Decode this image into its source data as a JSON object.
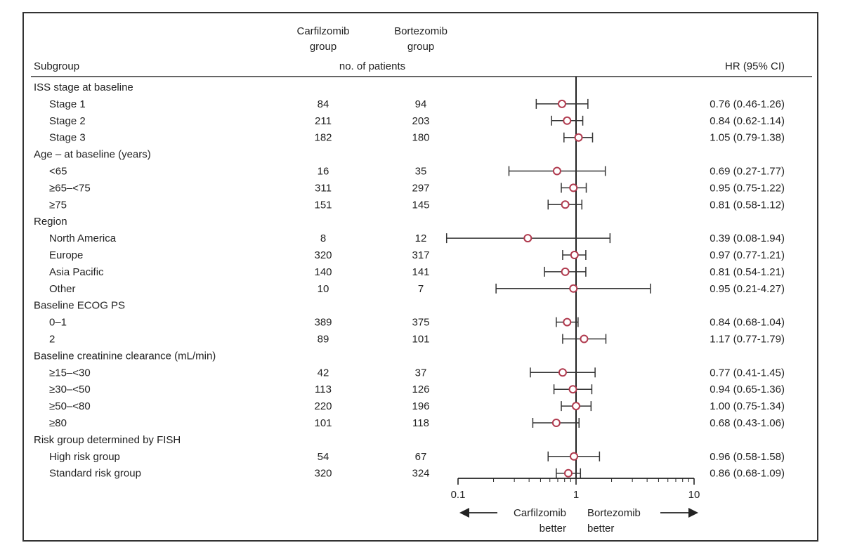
{
  "chart_data": {
    "type": "forest",
    "headers": {
      "subgroup": "Subgroup",
      "group1": [
        "Carfilzomib",
        "group"
      ],
      "group2": [
        "Bortezomib",
        "group"
      ],
      "patients": "no. of patients",
      "hr": "HR (95% CI)"
    },
    "x_scale": "log",
    "xlim": [
      0.1,
      10
    ],
    "reference_line": 1,
    "x_ticks": [
      "0.1",
      "1",
      "10"
    ],
    "direction_labels": {
      "left": [
        "Carfilzomib",
        "better"
      ],
      "right": [
        "Bortezomib",
        "better"
      ]
    },
    "colors": {
      "marker": "#b03a4e",
      "line": "#333333"
    },
    "rows": [
      {
        "kind": "header",
        "label": "ISS stage at baseline"
      },
      {
        "kind": "data",
        "label": "Stage 1",
        "n1": "84",
        "n2": "94",
        "hr": 0.76,
        "lo": 0.46,
        "hi": 1.26,
        "text": "0.76 (0.46-1.26)"
      },
      {
        "kind": "data",
        "label": "Stage 2",
        "n1": "211",
        "n2": "203",
        "hr": 0.84,
        "lo": 0.62,
        "hi": 1.14,
        "text": "0.84 (0.62-1.14)"
      },
      {
        "kind": "data",
        "label": "Stage 3",
        "n1": "182",
        "n2": "180",
        "hr": 1.05,
        "lo": 0.79,
        "hi": 1.38,
        "text": "1.05 (0.79-1.38)"
      },
      {
        "kind": "header",
        "label": "Age – at baseline (years)"
      },
      {
        "kind": "data",
        "label": "<65",
        "n1": "16",
        "n2": "35",
        "hr": 0.69,
        "lo": 0.27,
        "hi": 1.77,
        "text": "0.69 (0.27-1.77)"
      },
      {
        "kind": "data",
        "label": "≥65–<75",
        "n1": "311",
        "n2": "297",
        "hr": 0.95,
        "lo": 0.75,
        "hi": 1.22,
        "text": "0.95 (0.75-1.22)"
      },
      {
        "kind": "data",
        "label": "≥75",
        "n1": "151",
        "n2": "145",
        "hr": 0.81,
        "lo": 0.58,
        "hi": 1.12,
        "text": "0.81 (0.58-1.12)"
      },
      {
        "kind": "header",
        "label": "Region"
      },
      {
        "kind": "data",
        "label": "North America",
        "n1": "8",
        "n2": "12",
        "hr": 0.39,
        "lo": 0.08,
        "hi": 1.94,
        "text": "0.39 (0.08-1.94)"
      },
      {
        "kind": "data",
        "label": "Europe",
        "n1": "320",
        "n2": "317",
        "hr": 0.97,
        "lo": 0.77,
        "hi": 1.21,
        "text": "0.97 (0.77-1.21)"
      },
      {
        "kind": "data",
        "label": "Asia Pacific",
        "n1": "140",
        "n2": "141",
        "hr": 0.81,
        "lo": 0.54,
        "hi": 1.21,
        "text": "0.81 (0.54-1.21)"
      },
      {
        "kind": "data",
        "label": "Other",
        "n1": "10",
        "n2": "7",
        "hr": 0.95,
        "lo": 0.21,
        "hi": 4.27,
        "text": "0.95 (0.21-4.27)"
      },
      {
        "kind": "header",
        "label": "Baseline ECOG PS"
      },
      {
        "kind": "data",
        "label": "0–1",
        "n1": "389",
        "n2": "375",
        "hr": 0.84,
        "lo": 0.68,
        "hi": 1.04,
        "text": "0.84 (0.68-1.04)"
      },
      {
        "kind": "data",
        "label": "2",
        "n1": "89",
        "n2": "101",
        "hr": 1.17,
        "lo": 0.77,
        "hi": 1.79,
        "text": "1.17 (0.77-1.79)"
      },
      {
        "kind": "header",
        "label": "Baseline creatinine clearance (mL/min)"
      },
      {
        "kind": "data",
        "label": "≥15–<30",
        "n1": "42",
        "n2": "37",
        "hr": 0.77,
        "lo": 0.41,
        "hi": 1.45,
        "text": "0.77 (0.41-1.45)"
      },
      {
        "kind": "data",
        "label": "≥30–<50",
        "n1": "113",
        "n2": "126",
        "hr": 0.94,
        "lo": 0.65,
        "hi": 1.36,
        "text": "0.94 (0.65-1.36)"
      },
      {
        "kind": "data",
        "label": "≥50–<80",
        "n1": "220",
        "n2": "196",
        "hr": 1.0,
        "lo": 0.75,
        "hi": 1.34,
        "text": "1.00 (0.75-1.34)"
      },
      {
        "kind": "data",
        "label": "≥80",
        "n1": "101",
        "n2": "118",
        "hr": 0.68,
        "lo": 0.43,
        "hi": 1.06,
        "text": "0.68 (0.43-1.06)"
      },
      {
        "kind": "header",
        "label": "Risk group determined by FISH"
      },
      {
        "kind": "data",
        "label": "High risk group",
        "n1": "54",
        "n2": "67",
        "hr": 0.96,
        "lo": 0.58,
        "hi": 1.58,
        "text": "0.96 (0.58-1.58)"
      },
      {
        "kind": "data",
        "label": "Standard risk group",
        "n1": "320",
        "n2": "324",
        "hr": 0.86,
        "lo": 0.68,
        "hi": 1.09,
        "text": "0.86 (0.68-1.09)"
      }
    ]
  }
}
